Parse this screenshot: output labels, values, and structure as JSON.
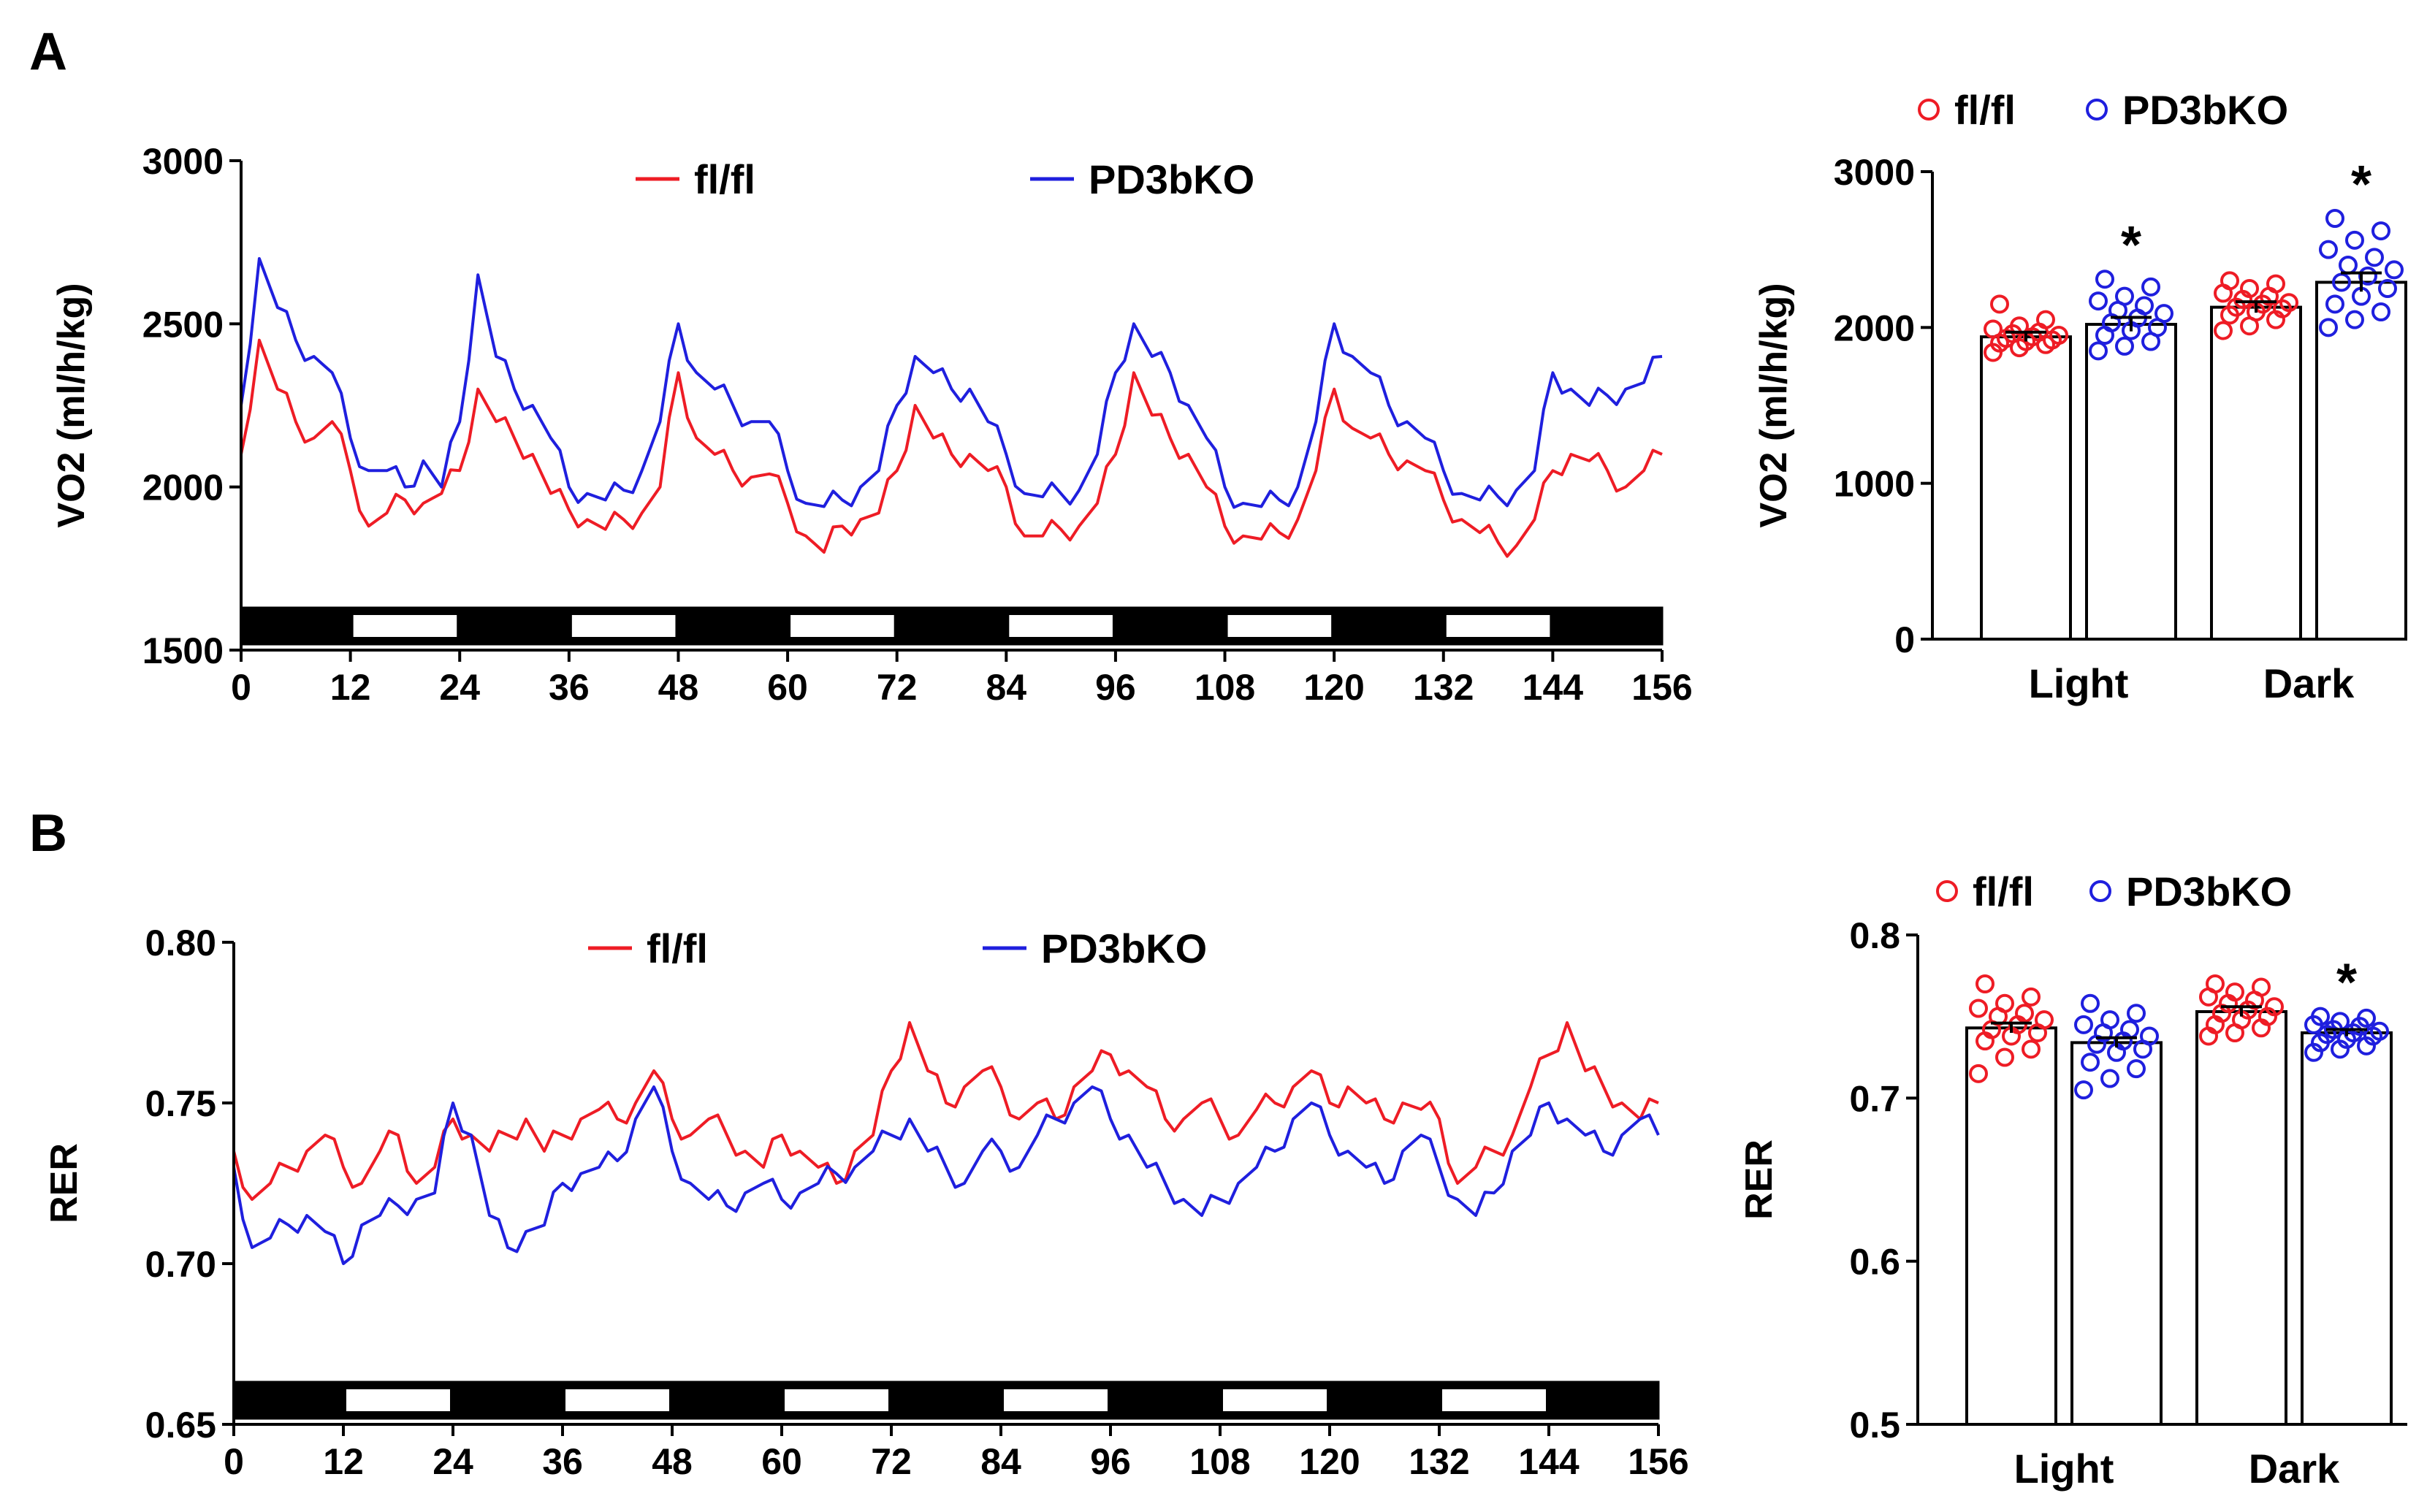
{
  "figure": {
    "panels": [
      {
        "letter": "A"
      },
      {
        "letter": "B"
      }
    ]
  },
  "colors": {
    "flfl": "#ee1c25",
    "pd3bko": "#1f1fde",
    "axis": "#000000",
    "dark_bar": "#000000",
    "light_bar": "#ffffff"
  },
  "chart_data": [
    {
      "id": "A-timecourse",
      "type": "line",
      "xlabel": "",
      "ylabel": "VO2 (ml/h/kg)",
      "xlim": [
        0,
        156
      ],
      "ylim": [
        1500,
        3000
      ],
      "xticks": [
        "0",
        "12",
        "24",
        "36",
        "48",
        "60",
        "72",
        "84",
        "96",
        "108",
        "120",
        "132",
        "144",
        "156"
      ],
      "yticks": [
        "1500",
        "2000",
        "2500",
        "3000"
      ],
      "light_periods": [
        [
          12,
          24
        ],
        [
          36,
          48
        ],
        [
          60,
          72
        ],
        [
          84,
          96
        ],
        [
          108,
          120
        ],
        [
          132,
          144
        ]
      ],
      "legend": [
        "fl/fl",
        "PD3bKO"
      ],
      "series": [
        {
          "name": "fl/fl",
          "color_key": "flfl",
          "x": [
            0,
            2,
            4,
            6,
            8,
            10,
            12,
            14,
            16,
            18,
            20,
            22,
            24,
            26,
            28,
            30,
            32,
            34,
            36,
            38,
            40,
            42,
            44,
            46,
            48,
            50,
            52,
            54,
            56,
            58,
            60,
            62,
            64,
            66,
            68,
            70,
            72,
            74,
            76,
            78,
            80,
            82,
            84,
            86,
            88,
            90,
            92,
            94,
            96,
            98,
            100,
            102,
            104,
            106,
            108,
            110,
            112,
            114,
            116,
            118,
            120,
            122,
            124,
            126,
            128,
            130,
            132,
            134,
            136,
            138,
            140,
            142,
            144,
            146,
            148,
            150,
            152,
            154,
            156
          ],
          "values": [
            2100,
            2450,
            2300,
            2200,
            2150,
            2200,
            2050,
            1880,
            1920,
            1960,
            1950,
            1980,
            2050,
            2300,
            2200,
            2150,
            2100,
            1980,
            1930,
            1900,
            1870,
            1900,
            1920,
            2000,
            2350,
            2150,
            2100,
            2050,
            2030,
            2040,
            1950,
            1850,
            1800,
            1880,
            1900,
            1920,
            2050,
            2250,
            2150,
            2100,
            2100,
            2050,
            2000,
            1850,
            1850,
            1870,
            1880,
            1950,
            2100,
            2350,
            2220,
            2150,
            2100,
            2000,
            1880,
            1850,
            1840,
            1860,
            1900,
            2050,
            2300,
            2180,
            2150,
            2100,
            2080,
            2050,
            1960,
            1900,
            1860,
            1830,
            1820,
            1900,
            2050,
            2100,
            2080,
            2050,
            2000,
            2050,
            2100
          ]
        },
        {
          "name": "PD3bKO",
          "color_key": "pd3bko",
          "x": [
            0,
            2,
            4,
            6,
            8,
            10,
            12,
            14,
            16,
            18,
            20,
            22,
            24,
            26,
            28,
            30,
            32,
            34,
            36,
            38,
            40,
            42,
            44,
            46,
            48,
            50,
            52,
            54,
            56,
            58,
            60,
            62,
            64,
            66,
            68,
            70,
            72,
            74,
            76,
            78,
            80,
            82,
            84,
            86,
            88,
            90,
            92,
            94,
            96,
            98,
            100,
            102,
            104,
            106,
            108,
            110,
            112,
            114,
            116,
            118,
            120,
            122,
            124,
            126,
            128,
            130,
            132,
            134,
            136,
            138,
            140,
            142,
            144,
            146,
            148,
            150,
            152,
            154,
            156
          ],
          "values": [
            2250,
            2700,
            2550,
            2450,
            2400,
            2350,
            2150,
            2050,
            2050,
            2000,
            2080,
            2000,
            2200,
            2650,
            2400,
            2300,
            2250,
            2150,
            2000,
            1980,
            1960,
            1990,
            2050,
            2200,
            2500,
            2350,
            2300,
            2250,
            2200,
            2200,
            2050,
            1950,
            1940,
            1960,
            2000,
            2050,
            2250,
            2400,
            2350,
            2300,
            2300,
            2200,
            2100,
            1980,
            1970,
            1980,
            1990,
            2100,
            2350,
            2500,
            2400,
            2350,
            2250,
            2150,
            2000,
            1950,
            1940,
            1960,
            2000,
            2200,
            2500,
            2400,
            2350,
            2250,
            2200,
            2150,
            2050,
            1980,
            1960,
            1970,
            1990,
            2050,
            2350,
            2300,
            2250,
            2280,
            2300,
            2320,
            2400
          ]
        }
      ]
    },
    {
      "id": "A-bars",
      "type": "bar",
      "categories": [
        "Light",
        "Dark"
      ],
      "ylabel": "VO2 (ml/h/kg)",
      "ylim": [
        0,
        3000
      ],
      "yticks": [
        "0",
        "1000",
        "2000",
        "3000"
      ],
      "legend": [
        "fl/fl",
        "PD3bKO"
      ],
      "significance_mark": "*",
      "series": [
        {
          "name": "fl/fl",
          "color_key": "flfl",
          "values": [
            1940,
            2130
          ],
          "sem": [
            30,
            35
          ],
          "points": [
            [
              1840,
              1870,
              1890,
              1900,
              1910,
              1920,
              1930,
              1940,
              1950,
              1960,
              1970,
              1990,
              2010,
              2050,
              2150
            ],
            [
              1980,
              2010,
              2050,
              2080,
              2100,
              2120,
              2130,
              2150,
              2160,
              2180,
              2200,
              2220,
              2250,
              2280,
              2300
            ]
          ]
        },
        {
          "name": "PD3bKO",
          "color_key": "pd3bko",
          "values": [
            2020,
            2290
          ],
          "sem": [
            45,
            60
          ],
          "significant": [
            true,
            true
          ],
          "points": [
            [
              1850,
              1880,
              1910,
              1950,
              1980,
              2000,
              2030,
              2060,
              2090,
              2110,
              2140,
              2170,
              2200,
              2260,
              2310
            ],
            [
              2000,
              2050,
              2100,
              2150,
              2200,
              2250,
              2290,
              2330,
              2370,
              2400,
              2450,
              2500,
              2560,
              2620,
              2700
            ]
          ]
        }
      ]
    },
    {
      "id": "B-timecourse",
      "type": "line",
      "xlabel": "",
      "ylabel": "RER",
      "xlim": [
        0,
        156
      ],
      "ylim": [
        0.65,
        0.8
      ],
      "xticks": [
        "0",
        "12",
        "24",
        "36",
        "48",
        "60",
        "72",
        "84",
        "96",
        "108",
        "120",
        "132",
        "144",
        "156"
      ],
      "yticks": [
        "0.65",
        "0.70",
        "0.75",
        "0.80"
      ],
      "light_periods": [
        [
          12,
          24
        ],
        [
          36,
          48
        ],
        [
          60,
          72
        ],
        [
          84,
          96
        ],
        [
          108,
          120
        ],
        [
          132,
          144
        ]
      ],
      "legend": [
        "fl/fl",
        "PD3bKO"
      ],
      "series": [
        {
          "name": "fl/fl",
          "color_key": "flfl",
          "x": [
            0,
            2,
            4,
            6,
            8,
            10,
            12,
            14,
            16,
            18,
            20,
            22,
            24,
            26,
            28,
            30,
            32,
            34,
            36,
            38,
            40,
            42,
            44,
            46,
            48,
            50,
            52,
            54,
            56,
            58,
            60,
            62,
            64,
            66,
            68,
            70,
            72,
            74,
            76,
            78,
            80,
            82,
            84,
            86,
            88,
            90,
            92,
            94,
            96,
            98,
            100,
            102,
            104,
            106,
            108,
            110,
            112,
            114,
            116,
            118,
            120,
            122,
            124,
            126,
            128,
            130,
            132,
            134,
            136,
            138,
            140,
            142,
            144,
            146,
            148,
            150,
            152,
            154,
            156
          ],
          "values": [
            0.735,
            0.72,
            0.725,
            0.73,
            0.735,
            0.74,
            0.73,
            0.725,
            0.735,
            0.74,
            0.725,
            0.73,
            0.745,
            0.74,
            0.735,
            0.74,
            0.745,
            0.735,
            0.74,
            0.745,
            0.748,
            0.745,
            0.75,
            0.76,
            0.745,
            0.74,
            0.745,
            0.74,
            0.735,
            0.73,
            0.74,
            0.735,
            0.73,
            0.725,
            0.735,
            0.74,
            0.76,
            0.775,
            0.76,
            0.75,
            0.755,
            0.76,
            0.755,
            0.745,
            0.75,
            0.745,
            0.755,
            0.76,
            0.765,
            0.76,
            0.755,
            0.745,
            0.745,
            0.75,
            0.745,
            0.74,
            0.748,
            0.75,
            0.755,
            0.76,
            0.75,
            0.755,
            0.75,
            0.745,
            0.75,
            0.748,
            0.745,
            0.725,
            0.73,
            0.735,
            0.74,
            0.755,
            0.765,
            0.775,
            0.76,
            0.755,
            0.75,
            0.745,
            0.75
          ]
        },
        {
          "name": "PD3bKO",
          "color_key": "pd3bko",
          "x": [
            0,
            2,
            4,
            6,
            8,
            10,
            12,
            14,
            16,
            18,
            20,
            22,
            24,
            26,
            28,
            30,
            32,
            34,
            36,
            38,
            40,
            42,
            44,
            46,
            48,
            50,
            52,
            54,
            56,
            58,
            60,
            62,
            64,
            66,
            68,
            70,
            72,
            74,
            76,
            78,
            80,
            82,
            84,
            86,
            88,
            90,
            92,
            94,
            96,
            98,
            100,
            102,
            104,
            106,
            108,
            110,
            112,
            114,
            116,
            118,
            120,
            122,
            124,
            126,
            128,
            130,
            132,
            134,
            136,
            138,
            140,
            142,
            144,
            146,
            148,
            150,
            152,
            154,
            156
          ],
          "values": [
            0.73,
            0.705,
            0.708,
            0.712,
            0.715,
            0.71,
            0.7,
            0.712,
            0.715,
            0.718,
            0.72,
            0.722,
            0.75,
            0.74,
            0.715,
            0.705,
            0.71,
            0.712,
            0.725,
            0.728,
            0.73,
            0.732,
            0.745,
            0.755,
            0.735,
            0.725,
            0.72,
            0.718,
            0.722,
            0.725,
            0.72,
            0.722,
            0.725,
            0.728,
            0.73,
            0.735,
            0.74,
            0.745,
            0.735,
            0.73,
            0.725,
            0.735,
            0.735,
            0.73,
            0.74,
            0.745,
            0.75,
            0.755,
            0.745,
            0.74,
            0.73,
            0.725,
            0.72,
            0.715,
            0.72,
            0.725,
            0.73,
            0.735,
            0.745,
            0.75,
            0.74,
            0.735,
            0.73,
            0.725,
            0.735,
            0.74,
            0.73,
            0.72,
            0.715,
            0.722,
            0.735,
            0.74,
            0.75,
            0.745,
            0.74,
            0.735,
            0.74,
            0.745,
            0.74
          ]
        }
      ]
    },
    {
      "id": "B-bars",
      "type": "bar",
      "categories": [
        "Light",
        "Dark"
      ],
      "ylabel": "RER",
      "ylim": [
        0.5,
        0.8
      ],
      "yticks": [
        "0.5",
        "0.6",
        "0.7",
        "0.8"
      ],
      "legend": [
        "fl/fl",
        "PD3bKO"
      ],
      "significance_mark": "*",
      "series": [
        {
          "name": "fl/fl",
          "color_key": "flfl",
          "values": [
            0.743,
            0.753
          ],
          "sem": [
            0.003,
            0.003
          ],
          "points": [
            [
              0.715,
              0.725,
              0.73,
              0.735,
              0.738,
              0.74,
              0.742,
              0.745,
              0.748,
              0.75,
              0.752,
              0.755,
              0.758,
              0.762,
              0.77
            ],
            [
              0.738,
              0.74,
              0.743,
              0.745,
              0.748,
              0.75,
              0.752,
              0.754,
              0.756,
              0.758,
              0.76,
              0.762,
              0.765,
              0.768,
              0.77
            ]
          ]
        },
        {
          "name": "PD3bKO",
          "color_key": "pd3bko",
          "values": [
            0.734,
            0.74
          ],
          "sem": [
            0.003,
            0.002
          ],
          "significant": [
            false,
            true
          ],
          "points": [
            [
              0.705,
              0.712,
              0.718,
              0.722,
              0.728,
              0.73,
              0.733,
              0.735,
              0.738,
              0.74,
              0.742,
              0.745,
              0.748,
              0.752,
              0.758
            ],
            [
              0.728,
              0.73,
              0.732,
              0.734,
              0.736,
              0.738,
              0.739,
              0.74,
              0.741,
              0.742,
              0.744,
              0.745,
              0.747,
              0.749,
              0.75
            ]
          ]
        }
      ]
    }
  ]
}
